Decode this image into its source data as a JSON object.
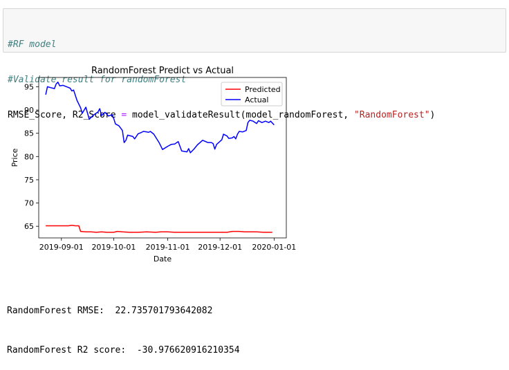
{
  "code": {
    "comment1": "#RF model",
    "comment2": "#Validate result for randomForest",
    "line3_lhs": "RMSE_Score, R2_Score ",
    "line3_eq": "=",
    "line3_call": " model_validateResult",
    "line3_open": "(",
    "line3_args": "model_randomForest, ",
    "line3_str": "\"RandomForest\"",
    "line3_close": ")"
  },
  "chart_data": {
    "type": "line",
    "title": "RandomForest Predict vs Actual",
    "xlabel": "Date",
    "ylabel": "Price",
    "xlim": [
      "2019-08-19",
      "2020-01-08"
    ],
    "ylim": [
      62.5,
      97.0
    ],
    "x_ticks": [
      "2019-09-01",
      "2019-10-01",
      "2019-11-01",
      "2019-12-01",
      "2020-01-01"
    ],
    "y_ticks": [
      65,
      70,
      75,
      80,
      85,
      90,
      95
    ],
    "legend_position": "top-right",
    "grid": false,
    "series": [
      {
        "name": "Predicted",
        "color": "#ff0000",
        "points": [
          [
            "2019-08-23",
            65.1
          ],
          [
            "2019-08-26",
            65.1
          ],
          [
            "2019-08-28",
            65.1
          ],
          [
            "2019-08-30",
            65.1
          ],
          [
            "2019-09-03",
            65.1
          ],
          [
            "2019-09-05",
            65.1
          ],
          [
            "2019-09-07",
            65.2
          ],
          [
            "2019-09-09",
            65.1
          ],
          [
            "2019-09-11",
            65.1
          ],
          [
            "2019-09-12",
            63.9
          ],
          [
            "2019-09-15",
            63.8
          ],
          [
            "2019-09-18",
            63.8
          ],
          [
            "2019-09-21",
            63.7
          ],
          [
            "2019-09-24",
            63.8
          ],
          [
            "2019-09-27",
            63.7
          ],
          [
            "2019-10-01",
            63.7
          ],
          [
            "2019-10-03",
            63.9
          ],
          [
            "2019-10-06",
            63.8
          ],
          [
            "2019-10-10",
            63.7
          ],
          [
            "2019-10-15",
            63.7
          ],
          [
            "2019-10-20",
            63.8
          ],
          [
            "2019-10-25",
            63.7
          ],
          [
            "2019-10-28",
            63.8
          ],
          [
            "2019-11-01",
            63.8
          ],
          [
            "2019-11-05",
            63.7
          ],
          [
            "2019-11-10",
            63.7
          ],
          [
            "2019-11-15",
            63.7
          ],
          [
            "2019-11-20",
            63.7
          ],
          [
            "2019-11-25",
            63.7
          ],
          [
            "2019-12-01",
            63.7
          ],
          [
            "2019-12-05",
            63.7
          ],
          [
            "2019-12-08",
            63.9
          ],
          [
            "2019-12-12",
            63.9
          ],
          [
            "2019-12-15",
            63.8
          ],
          [
            "2019-12-18",
            63.8
          ],
          [
            "2019-12-22",
            63.8
          ],
          [
            "2019-12-26",
            63.7
          ],
          [
            "2019-12-31",
            63.7
          ]
        ]
      },
      {
        "name": "Actual",
        "color": "#0000ff",
        "points": [
          [
            "2019-08-23",
            93.3
          ],
          [
            "2019-08-24",
            95.0
          ],
          [
            "2019-08-26",
            94.8
          ],
          [
            "2019-08-28",
            94.6
          ],
          [
            "2019-08-29",
            95.6
          ],
          [
            "2019-08-30",
            96.0
          ],
          [
            "2019-08-31",
            95.2
          ],
          [
            "2019-09-02",
            95.3
          ],
          [
            "2019-09-04",
            95.0
          ],
          [
            "2019-09-06",
            94.7
          ],
          [
            "2019-09-07",
            94.1
          ],
          [
            "2019-09-08",
            94.3
          ],
          [
            "2019-09-10",
            92.0
          ],
          [
            "2019-09-12",
            90.5
          ],
          [
            "2019-09-13",
            89.3
          ],
          [
            "2019-09-15",
            90.6
          ],
          [
            "2019-09-17",
            88.0
          ],
          [
            "2019-09-19",
            88.8
          ],
          [
            "2019-09-22",
            89.6
          ],
          [
            "2019-09-23",
            90.3
          ],
          [
            "2019-09-24",
            88.8
          ],
          [
            "2019-09-26",
            89.5
          ],
          [
            "2019-09-28",
            88.7
          ],
          [
            "2019-09-30",
            89.0
          ],
          [
            "2019-10-01",
            88.2
          ],
          [
            "2019-10-02",
            87.0
          ],
          [
            "2019-10-04",
            86.6
          ],
          [
            "2019-10-06",
            85.6
          ],
          [
            "2019-10-07",
            83.0
          ],
          [
            "2019-10-08",
            83.5
          ],
          [
            "2019-10-09",
            84.6
          ],
          [
            "2019-10-12",
            84.3
          ],
          [
            "2019-10-13",
            83.8
          ],
          [
            "2019-10-15",
            84.9
          ],
          [
            "2019-10-17",
            85.2
          ],
          [
            "2019-10-18",
            85.4
          ],
          [
            "2019-10-20",
            85.3
          ],
          [
            "2019-10-21",
            85.2
          ],
          [
            "2019-10-22",
            85.4
          ],
          [
            "2019-10-24",
            84.8
          ],
          [
            "2019-10-27",
            83.0
          ],
          [
            "2019-10-29",
            81.5
          ],
          [
            "2019-11-01",
            82.2
          ],
          [
            "2019-11-03",
            82.6
          ],
          [
            "2019-11-05",
            82.7
          ],
          [
            "2019-11-07",
            83.2
          ],
          [
            "2019-11-09",
            81.2
          ],
          [
            "2019-11-12",
            81.0
          ],
          [
            "2019-11-13",
            81.7
          ],
          [
            "2019-11-14",
            80.8
          ],
          [
            "2019-11-16",
            81.6
          ],
          [
            "2019-11-18",
            82.5
          ],
          [
            "2019-11-21",
            83.5
          ],
          [
            "2019-11-24",
            83.0
          ],
          [
            "2019-11-26",
            83.0
          ],
          [
            "2019-11-27",
            82.8
          ],
          [
            "2019-11-28",
            81.6
          ],
          [
            "2019-11-29",
            82.6
          ],
          [
            "2019-12-02",
            83.6
          ],
          [
            "2019-12-03",
            84.8
          ],
          [
            "2019-12-05",
            84.4
          ],
          [
            "2019-12-06",
            83.9
          ],
          [
            "2019-12-08",
            84.0
          ],
          [
            "2019-12-09",
            84.3
          ],
          [
            "2019-12-10",
            83.8
          ],
          [
            "2019-12-11",
            84.8
          ],
          [
            "2019-12-12",
            85.4
          ],
          [
            "2019-12-14",
            85.3
          ],
          [
            "2019-12-16",
            85.6
          ],
          [
            "2019-12-17",
            87.3
          ],
          [
            "2019-12-18",
            87.8
          ],
          [
            "2019-12-20",
            87.6
          ],
          [
            "2019-12-22",
            87.1
          ],
          [
            "2019-12-23",
            87.7
          ],
          [
            "2019-12-25",
            87.3
          ],
          [
            "2019-12-27",
            87.6
          ],
          [
            "2019-12-29",
            87.3
          ],
          [
            "2019-12-30",
            87.6
          ],
          [
            "2020-01-01",
            86.8
          ]
        ]
      }
    ]
  },
  "output": {
    "rmse_line": "RandomForest RMSE:  22.735701793642082",
    "r2_line": "RandomForest R2 score:  -30.976620916210354"
  }
}
